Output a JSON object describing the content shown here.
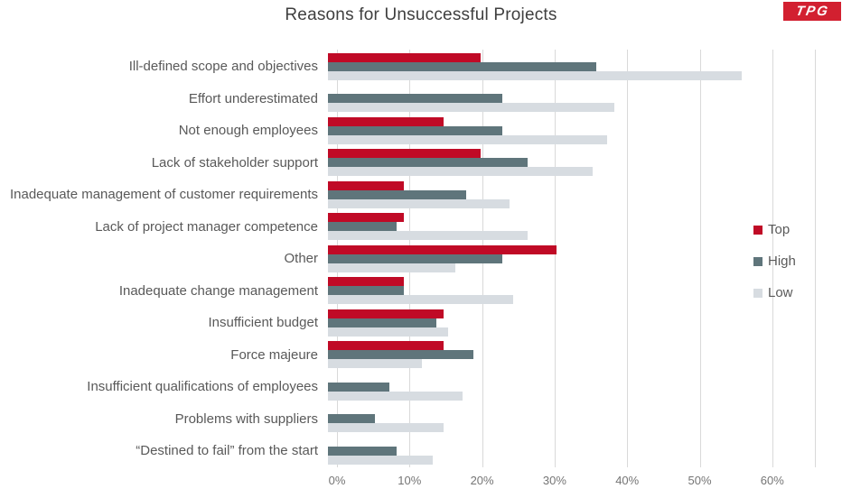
{
  "logo": {
    "text": "TPG",
    "background_color": "#d22030",
    "text_color": "#ffffff"
  },
  "chart_data": {
    "type": "bar",
    "orientation": "horizontal",
    "title": "Reasons for Unsuccessful Projects",
    "title_color": "#3f3f3f",
    "grid": true,
    "gridline_color": "#d9d9d9",
    "legend_position": "right",
    "categories": [
      "Ill-defined scope and objectives",
      "Effort underestimated",
      "Not enough employees",
      "Lack of stakeholder support",
      "Inadequate management of customer requirements",
      "Lack of project manager competence",
      "Other",
      "Inadequate change management",
      "Insufficient budget",
      "Force majeure",
      "Insufficient qualifications of employees",
      "Problems with suppliers",
      "“Destined to fail” from the start"
    ],
    "series": [
      {
        "name": "Top",
        "color": "#c00a26",
        "values": [
          21,
          null,
          16,
          21,
          10.5,
          10.5,
          31.5,
          10.5,
          16,
          16,
          null,
          null,
          null
        ]
      },
      {
        "name": "High",
        "color": "#5f757b",
        "values": [
          37,
          24,
          24,
          27.5,
          19,
          9.5,
          24,
          10.5,
          15,
          20,
          8.5,
          6.5,
          9.5
        ]
      },
      {
        "name": "Low",
        "color": "#d7dce1",
        "values": [
          57,
          39.5,
          38.5,
          36.5,
          25,
          27.5,
          17.5,
          25.5,
          16.5,
          13,
          18.5,
          16,
          14.5
        ]
      }
    ],
    "x_axis": {
      "unit": "%",
      "min": 0,
      "max": 66,
      "tick_values": [
        0,
        10,
        20,
        30,
        40,
        50,
        60
      ],
      "ticks": [
        "0%",
        "10%",
        "20%",
        "30%",
        "40%",
        "50%",
        "60%"
      ]
    }
  }
}
